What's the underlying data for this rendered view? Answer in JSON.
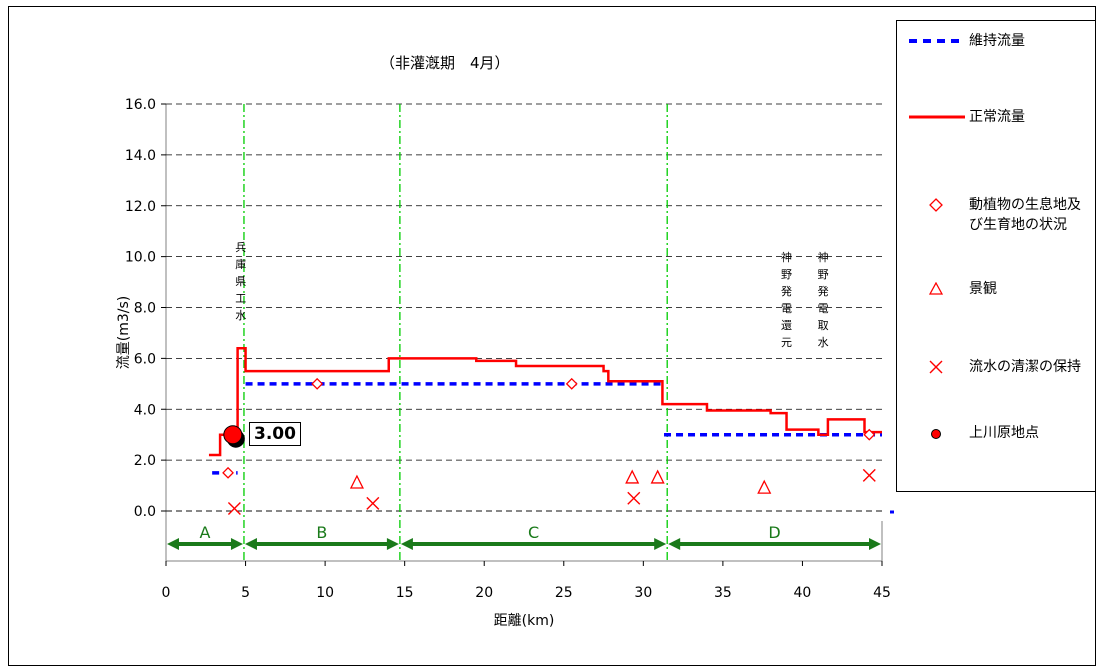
{
  "chart_data": {
    "type": "line",
    "title": "（非灌漑期　4月）",
    "xlabel": "距離(km)",
    "ylabel": "流量(m3/s)",
    "xlim": [
      0,
      45
    ],
    "ylim": [
      0,
      16
    ],
    "x_ticks": [
      "0",
      "5",
      "10",
      "15",
      "20",
      "25",
      "30",
      "35",
      "40",
      "45"
    ],
    "y_ticks": [
      "0.0",
      "2.0",
      "4.0",
      "6.0",
      "8.0",
      "10.0",
      "12.0",
      "14.0",
      "16.0"
    ],
    "grid": "horizontal dashed",
    "legend_position": "right",
    "series": [
      {
        "name": "維持流量",
        "style": "dashed",
        "color": "#0000ff",
        "segments": [
          [
            [
              2.9,
              1.5
            ],
            [
              4.5,
              1.5
            ]
          ],
          [
            [
              5.0,
              5.0
            ],
            [
              31.3,
              5.0
            ]
          ],
          [
            [
              31.3,
              3.0
            ],
            [
              45.0,
              3.0
            ]
          ]
        ]
      },
      {
        "name": "正常流量",
        "style": "solid step",
        "color": "#ff0000",
        "points": [
          [
            2.7,
            2.2
          ],
          [
            3.4,
            2.2
          ],
          [
            3.4,
            3.0
          ],
          [
            4.5,
            3.0
          ],
          [
            4.5,
            6.4
          ],
          [
            5.0,
            6.4
          ],
          [
            5.0,
            5.5
          ],
          [
            14.0,
            5.5
          ],
          [
            14.0,
            6.0
          ],
          [
            19.5,
            6.0
          ],
          [
            19.5,
            5.9
          ],
          [
            22.0,
            5.9
          ],
          [
            22.0,
            5.7
          ],
          [
            27.5,
            5.7
          ],
          [
            27.5,
            5.5
          ],
          [
            27.8,
            5.5
          ],
          [
            27.8,
            5.1
          ],
          [
            31.2,
            5.1
          ],
          [
            31.2,
            4.2
          ],
          [
            34.0,
            4.2
          ],
          [
            34.0,
            3.95
          ],
          [
            38.0,
            3.95
          ],
          [
            38.0,
            3.85
          ],
          [
            39.0,
            3.85
          ],
          [
            39.0,
            3.2
          ],
          [
            41.0,
            3.2
          ],
          [
            41.0,
            3.0
          ],
          [
            41.6,
            3.0
          ],
          [
            41.6,
            3.6
          ],
          [
            43.9,
            3.6
          ],
          [
            43.9,
            3.1
          ],
          [
            45.0,
            3.1
          ]
        ]
      },
      {
        "name": "動植物の生息地及び生育地の状況",
        "marker": "diamond",
        "color": "#ff0000",
        "points": [
          [
            3.9,
            1.5
          ],
          [
            9.5,
            5.0
          ],
          [
            25.5,
            5.0
          ],
          [
            44.2,
            3.0
          ]
        ]
      },
      {
        "name": "景観",
        "marker": "triangle",
        "color": "#ff0000",
        "points": [
          [
            12.0,
            1.1
          ],
          [
            29.3,
            1.3
          ],
          [
            30.9,
            1.3
          ],
          [
            37.6,
            0.9
          ]
        ]
      },
      {
        "name": "流水の清潔の保持",
        "marker": "x",
        "color": "#ff0000",
        "points": [
          [
            4.3,
            0.1
          ],
          [
            13.0,
            0.3
          ],
          [
            29.4,
            0.5
          ],
          [
            44.2,
            1.4
          ]
        ]
      },
      {
        "name": "上川原地点",
        "marker": "circle",
        "color": "#ff0000",
        "points": [
          [
            4.2,
            3.0
          ]
        ],
        "label": "3.00"
      }
    ],
    "section_dividers_x": [
      4.9,
      14.7,
      31.5
    ],
    "sections": [
      {
        "label": "A",
        "from": 0,
        "to": 4.9
      },
      {
        "label": "B",
        "from": 4.9,
        "to": 14.7
      },
      {
        "label": "C",
        "from": 14.7,
        "to": 31.5
      },
      {
        "label": "D",
        "from": 31.5,
        "to": 45
      }
    ],
    "annotations": [
      {
        "text": "兵庫県工水",
        "x": 4.7,
        "y_top": 10.7
      },
      {
        "text": "神野発電還元",
        "x": 39.0,
        "y_top": 10.3
      },
      {
        "text": "神野発電取水",
        "x": 41.3,
        "y_top": 10.3
      }
    ]
  }
}
